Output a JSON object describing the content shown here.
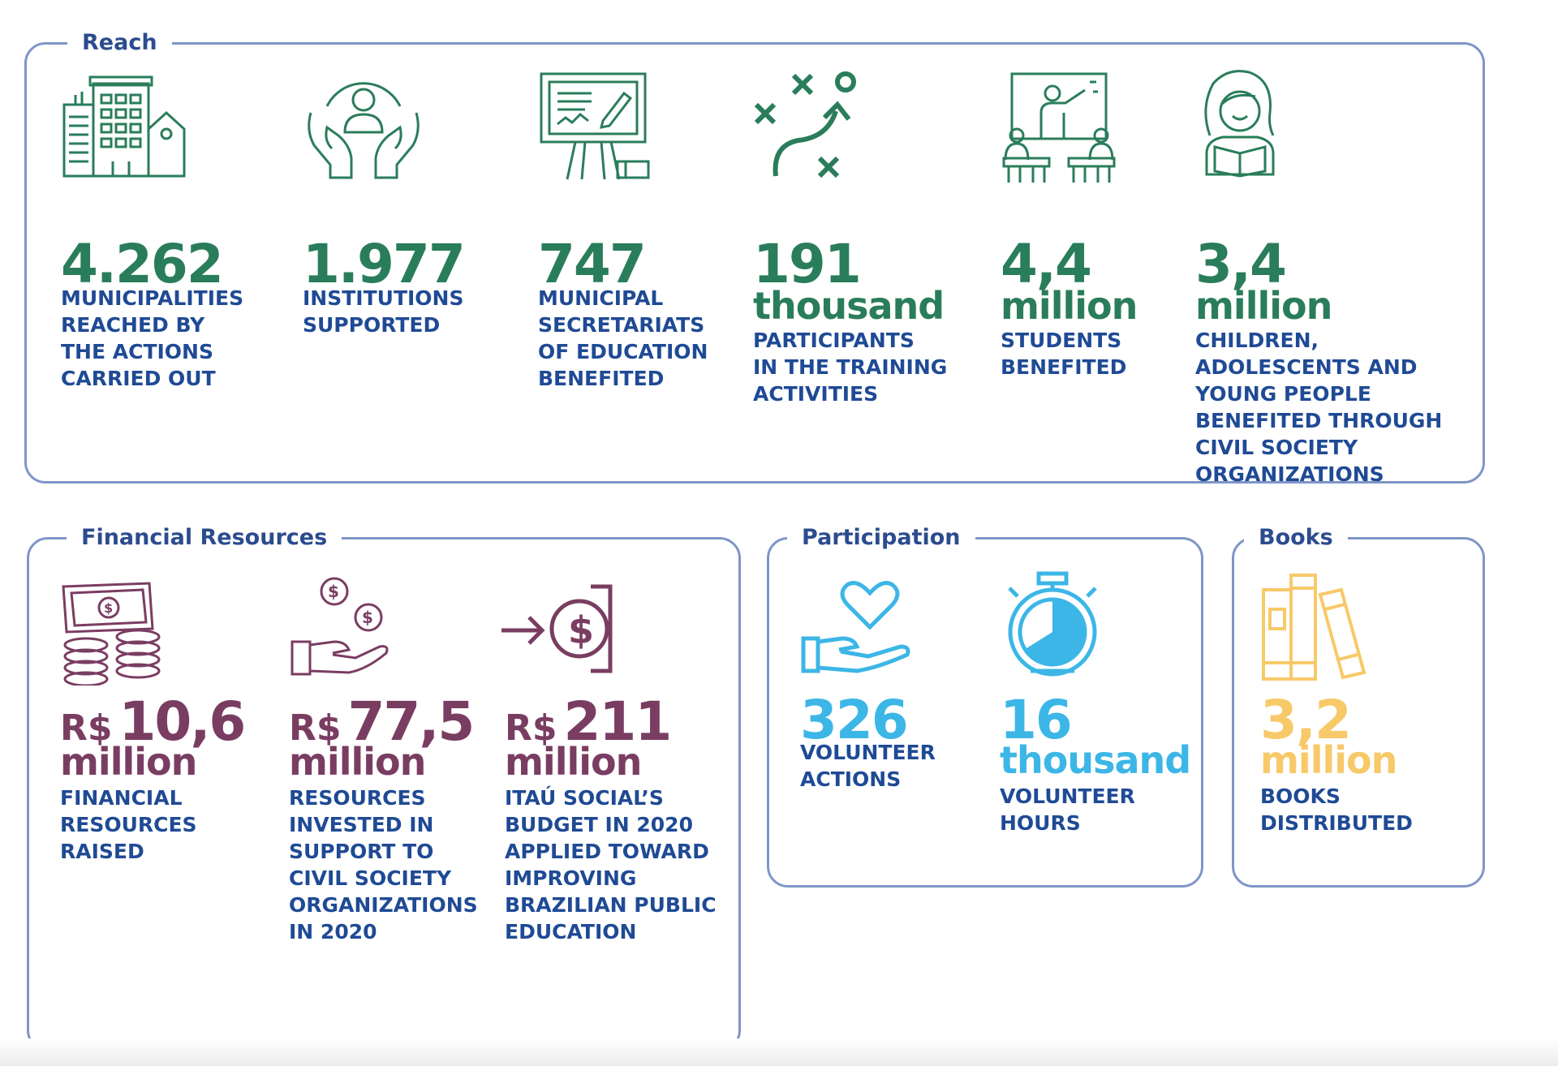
{
  "colors": {
    "panel_border": "#7f95c9",
    "title_text": "#2b4c8e",
    "description_text": "#1f4a95",
    "reach_green": "#2a7d5b",
    "financial_purple": "#7a3d62",
    "participation_blue": "#3cb6e6",
    "books_yellow": "#f8c969"
  },
  "reach": {
    "title": "Reach",
    "stats": [
      {
        "icon": "city-buildings-icon",
        "value": "4.262",
        "unit": "",
        "label": "MUNICIPALITIES\nREACHED BY\nTHE ACTIONS\nCARRIED OUT"
      },
      {
        "icon": "hands-holding-person-icon",
        "value": "1.977",
        "unit": "",
        "label": "INSTITUTIONS\nSUPPORTED"
      },
      {
        "icon": "presentation-board-icon",
        "value": "747",
        "unit": "",
        "label": "MUNICIPAL\nSECRETARIATS\nOF EDUCATION\nBENEFITED"
      },
      {
        "icon": "strategy-play-icon",
        "value": "191",
        "unit": "thousand",
        "label": "PARTICIPANTS\nIN THE TRAINING\nACTIVITIES"
      },
      {
        "icon": "classroom-teacher-icon",
        "value": "4,4",
        "unit": "million",
        "label": "STUDENTS\nBENEFITED"
      },
      {
        "icon": "girl-reading-icon",
        "value": "3,4",
        "unit": "million",
        "label": "CHILDREN,\nADOLESCENTS AND\nYOUNG PEOPLE\nBENEFITED THROUGH\nCIVIL SOCIETY\nORGANIZATIONS"
      }
    ]
  },
  "financial": {
    "title": "Financial Resources",
    "currency": "R$",
    "stats": [
      {
        "icon": "money-stack-icon",
        "value": "10,6",
        "unit": "million",
        "label": "FINANCIAL\nRESOURCES\nRAISED"
      },
      {
        "icon": "hand-coins-icon",
        "value": "77,5",
        "unit": "million",
        "label": "RESOURCES\nINVESTED IN\nSUPPORT TO\nCIVIL SOCIETY\nORGANIZATIONS\nIN 2020"
      },
      {
        "icon": "money-in-icon",
        "value": "211",
        "unit": "million",
        "label": "ITAÚ SOCIAL’S\nBUDGET IN 2020\nAPPLIED TOWARD\nIMPROVING\nBRAZILIAN PUBLIC\nEDUCATION"
      }
    ]
  },
  "participation": {
    "title": "Participation",
    "stats": [
      {
        "icon": "hand-heart-icon",
        "value": "326",
        "unit": "",
        "label": "VOLUNTEER\nACTIONS"
      },
      {
        "icon": "stopwatch-icon",
        "value": "16",
        "unit": "thousand",
        "label": "VOLUNTEER\nHOURS"
      }
    ]
  },
  "books": {
    "title": "Books",
    "stats": [
      {
        "icon": "books-icon",
        "value": "3,2",
        "unit": "million",
        "label": "BOOKS\nDISTRIBUTED"
      }
    ]
  }
}
